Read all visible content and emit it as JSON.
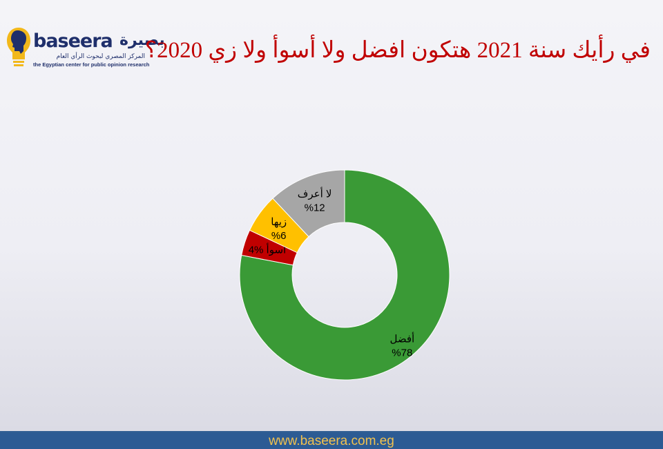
{
  "logo": {
    "latin": "baseera",
    "arabic": "بصيرة",
    "subtitle_ar": "المركز المصري لبحوث الرأي العام",
    "subtitle_en": "the Egyptian center for public opinion research",
    "icon": "head-bulb-icon",
    "colors": {
      "navy": "#1f2f6b",
      "bulb": "#f2b81b"
    }
  },
  "title": "في رأيك سنة 2021 هتكون افضل ولا  أسوأ ولا زي 2020؟",
  "footer": {
    "url": "www.baseera.com.eg"
  },
  "chart_data": {
    "type": "pie",
    "donut": true,
    "title": "",
    "slices": [
      {
        "label": "أفضل",
        "value": 78,
        "value_text": "%78",
        "color": "#3a9a36"
      },
      {
        "label": "أسوأ",
        "value": 4,
        "value_text": "%4",
        "color": "#c00000"
      },
      {
        "label": "زيها",
        "value": 6,
        "value_text": "%6",
        "color": "#ffc000"
      },
      {
        "label": "لا أعرف",
        "value": 12,
        "value_text": "%12",
        "color": "#a6a6a6"
      }
    ]
  }
}
